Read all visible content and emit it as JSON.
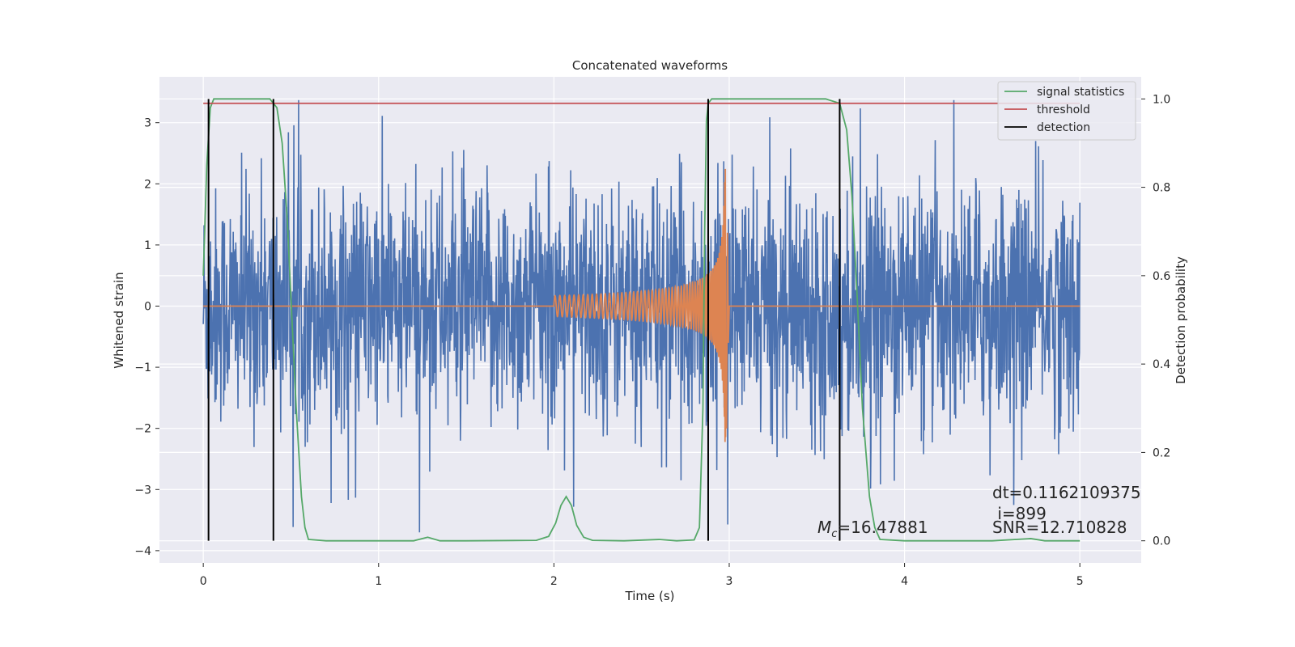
{
  "chart_data": {
    "type": "line",
    "title": "Concatenated waveforms",
    "xlabel": "Time (s)",
    "ylabel": "Whitened strain",
    "y2label": "Detection probability",
    "xlim": [
      -0.25,
      5.35
    ],
    "ylim": [
      -4.2,
      3.75
    ],
    "y2lim": [
      -0.05,
      1.05
    ],
    "xticks": [
      0,
      1,
      2,
      3,
      4,
      5
    ],
    "yticks": [
      -4,
      -3,
      -2,
      -1,
      0,
      1,
      2,
      3
    ],
    "y2ticks": [
      0.0,
      0.2,
      0.4,
      0.6,
      0.8,
      1.0
    ],
    "xtick_labels": [
      "0",
      "1",
      "2",
      "3",
      "4",
      "5"
    ],
    "ytick_labels": [
      "−4",
      "−3",
      "−2",
      "−1",
      "0",
      "1",
      "2",
      "3"
    ],
    "y2tick_labels": [
      "0.0",
      "0.2",
      "0.4",
      "0.6",
      "0.8",
      "1.0"
    ],
    "grid": true,
    "legend": {
      "position": "top-right",
      "entries": [
        "signal statistics",
        "threshold",
        "detection"
      ]
    },
    "colors": {
      "noise": "#4c72b0",
      "waveform": "#dd8452",
      "signal_statistics": "#55a868",
      "threshold": "#c44e52",
      "detection": "#000000",
      "background": "#eaeaf2"
    },
    "series": [
      {
        "name": "signal statistics",
        "axis": "right",
        "x": [
          0.0,
          0.02,
          0.04,
          0.06,
          0.1,
          0.2,
          0.3,
          0.38,
          0.42,
          0.45,
          0.48,
          0.5,
          0.53,
          0.56,
          0.58,
          0.6,
          0.7,
          1.0,
          1.2,
          1.28,
          1.35,
          1.5,
          1.9,
          1.97,
          2.01,
          2.04,
          2.07,
          2.1,
          2.13,
          2.17,
          2.22,
          2.4,
          2.6,
          2.7,
          2.8,
          2.83,
          2.85,
          2.86,
          2.87,
          2.88,
          2.9,
          3.0,
          3.3,
          3.55,
          3.63,
          3.67,
          3.7,
          3.73,
          3.76,
          3.8,
          3.83,
          3.86,
          4.0,
          4.5,
          4.72,
          4.8,
          5.0
        ],
        "y": [
          0.6,
          0.85,
          0.98,
          1.0,
          1.0,
          1.0,
          1.0,
          1.0,
          0.98,
          0.9,
          0.72,
          0.55,
          0.3,
          0.1,
          0.03,
          0.003,
          0.0,
          0.0,
          0.0,
          0.008,
          0.0,
          0.0,
          0.001,
          0.01,
          0.04,
          0.08,
          0.1,
          0.08,
          0.035,
          0.008,
          0.001,
          0.0,
          0.003,
          0.0,
          0.002,
          0.03,
          0.3,
          0.7,
          0.95,
          0.99,
          1.0,
          1.0,
          1.0,
          1.0,
          0.99,
          0.93,
          0.78,
          0.55,
          0.3,
          0.1,
          0.03,
          0.003,
          0.0,
          0.0,
          0.005,
          0.0,
          0.0
        ]
      },
      {
        "name": "threshold",
        "axis": "right",
        "x": [
          0.0,
          5.0
        ],
        "y": [
          0.99,
          0.99
        ]
      }
    ],
    "noise_segment": {
      "axis": "left",
      "x_range": [
        0.0,
        5.0
      ],
      "typical_amplitude": 1.0,
      "extremes": [
        -3.7,
        3.37
      ]
    },
    "injected_waveform": {
      "axis": "left",
      "x_range": [
        2.0,
        3.0
      ],
      "amplitude_start": 0.17,
      "amplitude_peak": 2.25,
      "peak_time": 2.98
    },
    "detections": [
      0.03,
      0.4,
      2.88,
      3.63
    ],
    "annotations": {
      "mc_symbol": "M",
      "mc_sub": "c",
      "mc_value": "=16.47881",
      "dt": "dt=0.1162109375",
      "i": " i=899",
      "snr": "SNR=12.710828"
    }
  }
}
